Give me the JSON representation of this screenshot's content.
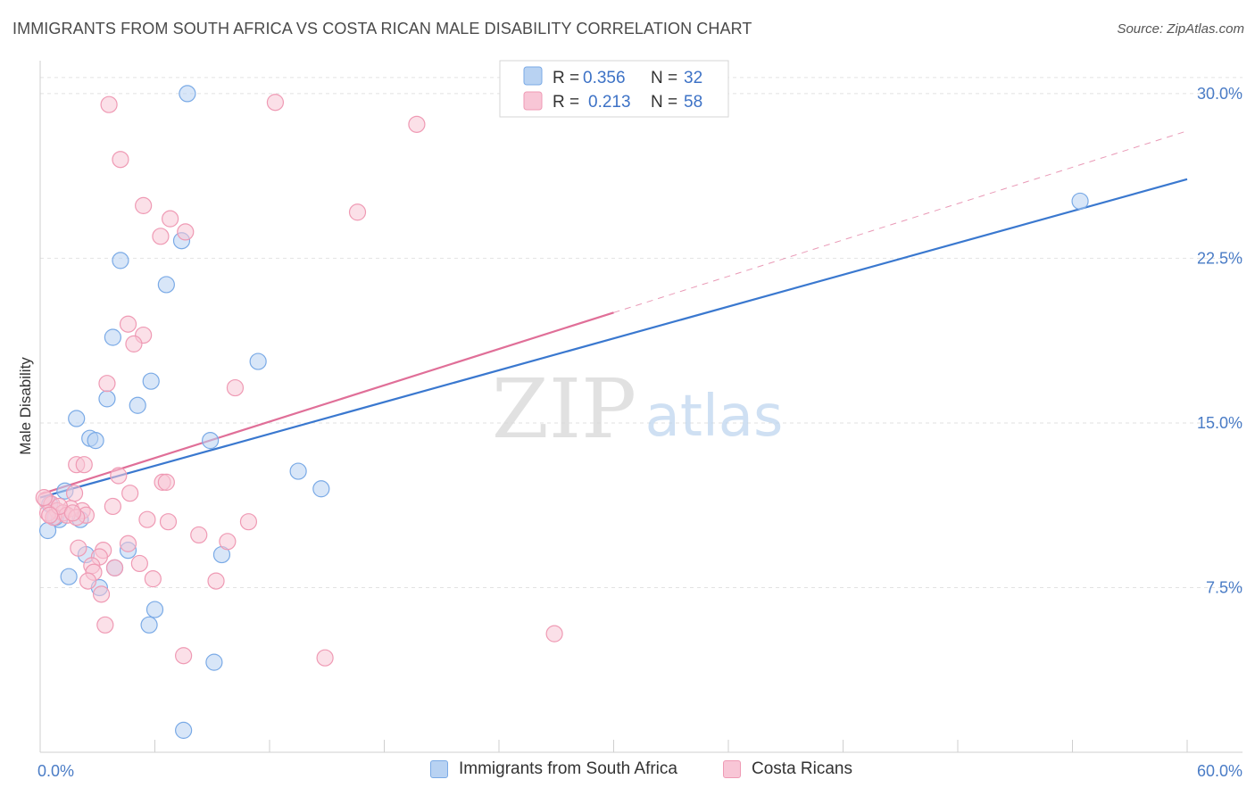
{
  "header": {
    "title": "IMMIGRANTS FROM SOUTH AFRICA VS COSTA RICAN MALE DISABILITY CORRELATION CHART",
    "source": "Source: ZipAtlas.com"
  },
  "watermark": {
    "zip": "ZIP",
    "atlas": "atlas"
  },
  "colors": {
    "blue_fill": "#b8d2f2",
    "blue_stroke": "#7aaae6",
    "blue_line": "#3a78cf",
    "pink_fill": "#f8c6d6",
    "pink_stroke": "#ef9ab4",
    "pink_line": "#e06f98",
    "grid": "#e2e2e2",
    "axis_text": "#4a7cc6"
  },
  "legend": {
    "series": [
      {
        "r_label": "R =",
        "r_value": "0.356",
        "n_label": "N =",
        "n_value": "32"
      },
      {
        "r_label": "R =",
        "r_value": "0.213",
        "n_label": "N =",
        "n_value": "58"
      }
    ]
  },
  "bottom_legend": {
    "items": [
      "Immigrants from South Africa",
      "Costa Ricans"
    ]
  },
  "chart_data": {
    "type": "scatter",
    "title": "IMMIGRANTS FROM SOUTH AFRICA VS COSTA RICAN MALE DISABILITY CORRELATION CHART",
    "xlabel": "",
    "ylabel": "Male Disability",
    "xlim": [
      0,
      60
    ],
    "ylim": [
      0,
      31.5
    ],
    "y_ticks": [
      {
        "value": 7.5,
        "label": "7.5%"
      },
      {
        "value": 15.0,
        "label": "15.0%"
      },
      {
        "value": 22.5,
        "label": "22.5%"
      },
      {
        "value": 30.0,
        "label": "30.0%"
      }
    ],
    "x_tick_labels": [
      {
        "value": 0,
        "label": "0.0%"
      },
      {
        "value": 60,
        "label": "60.0%"
      }
    ],
    "x_minor_ticks": [
      6,
      12,
      18,
      24,
      30,
      36,
      42,
      48,
      54,
      60
    ],
    "series": [
      {
        "name": "Immigrants from South Africa",
        "color": "blue",
        "r": 0.356,
        "n": 32,
        "trend": {
          "x0": 0,
          "y0": 11.6,
          "x1": 60,
          "y1": 26.1,
          "solid_until": 60
        },
        "points": [
          [
            7.7,
            30.0
          ],
          [
            4.2,
            22.4
          ],
          [
            7.4,
            23.3
          ],
          [
            6.6,
            21.3
          ],
          [
            3.8,
            18.9
          ],
          [
            11.4,
            17.8
          ],
          [
            5.8,
            16.9
          ],
          [
            3.5,
            16.1
          ],
          [
            5.1,
            15.8
          ],
          [
            1.9,
            15.2
          ],
          [
            2.6,
            14.3
          ],
          [
            2.9,
            14.2
          ],
          [
            8.9,
            14.2
          ],
          [
            13.5,
            12.8
          ],
          [
            14.7,
            12.0
          ],
          [
            0.5,
            11.3
          ],
          [
            1.3,
            11.9
          ],
          [
            1.0,
            10.6
          ],
          [
            0.8,
            10.7
          ],
          [
            2.1,
            10.6
          ],
          [
            0.4,
            10.1
          ],
          [
            2.4,
            9.0
          ],
          [
            4.6,
            9.2
          ],
          [
            9.5,
            9.0
          ],
          [
            1.5,
            8.0
          ],
          [
            3.9,
            8.4
          ],
          [
            3.1,
            7.5
          ],
          [
            6.0,
            6.5
          ],
          [
            5.7,
            5.8
          ],
          [
            9.1,
            4.1
          ],
          [
            7.5,
            1.0
          ],
          [
            54.4,
            25.1
          ]
        ]
      },
      {
        "name": "Costa Ricans",
        "color": "pink",
        "r": 0.213,
        "n": 58,
        "trend": {
          "x0": 0,
          "y0": 11.75,
          "x1": 60,
          "y1": 28.3,
          "solid_until": 30
        },
        "points": [
          [
            3.6,
            29.5
          ],
          [
            12.3,
            29.6
          ],
          [
            19.7,
            28.6
          ],
          [
            4.2,
            27.0
          ],
          [
            5.4,
            24.9
          ],
          [
            6.8,
            24.3
          ],
          [
            16.6,
            24.6
          ],
          [
            6.3,
            23.5
          ],
          [
            7.6,
            23.7
          ],
          [
            4.6,
            19.5
          ],
          [
            5.4,
            19.0
          ],
          [
            4.9,
            18.6
          ],
          [
            3.5,
            16.8
          ],
          [
            10.2,
            16.6
          ],
          [
            1.9,
            13.1
          ],
          [
            2.3,
            13.1
          ],
          [
            4.1,
            12.6
          ],
          [
            6.4,
            12.3
          ],
          [
            6.6,
            12.3
          ],
          [
            1.8,
            11.8
          ],
          [
            4.7,
            11.8
          ],
          [
            0.3,
            11.5
          ],
          [
            0.6,
            11.3
          ],
          [
            3.8,
            11.2
          ],
          [
            0.9,
            11.0
          ],
          [
            1.6,
            11.1
          ],
          [
            2.2,
            11.0
          ],
          [
            0.4,
            10.9
          ],
          [
            1.2,
            10.9
          ],
          [
            2.4,
            10.8
          ],
          [
            0.7,
            10.7
          ],
          [
            1.4,
            10.8
          ],
          [
            1.9,
            10.7
          ],
          [
            5.6,
            10.6
          ],
          [
            6.7,
            10.5
          ],
          [
            10.9,
            10.5
          ],
          [
            8.3,
            9.9
          ],
          [
            9.8,
            9.6
          ],
          [
            4.6,
            9.5
          ],
          [
            2.0,
            9.3
          ],
          [
            3.3,
            9.2
          ],
          [
            3.1,
            8.9
          ],
          [
            2.7,
            8.5
          ],
          [
            5.2,
            8.6
          ],
          [
            2.8,
            8.2
          ],
          [
            3.9,
            8.4
          ],
          [
            5.9,
            7.9
          ],
          [
            9.2,
            7.8
          ],
          [
            2.5,
            7.8
          ],
          [
            3.2,
            7.2
          ],
          [
            3.4,
            5.8
          ],
          [
            7.5,
            4.4
          ],
          [
            14.9,
            4.3
          ],
          [
            26.9,
            5.4
          ],
          [
            0.2,
            11.6
          ],
          [
            1.0,
            11.2
          ],
          [
            1.7,
            10.9
          ],
          [
            0.5,
            10.8
          ]
        ]
      }
    ],
    "legend_position": "top-center"
  }
}
